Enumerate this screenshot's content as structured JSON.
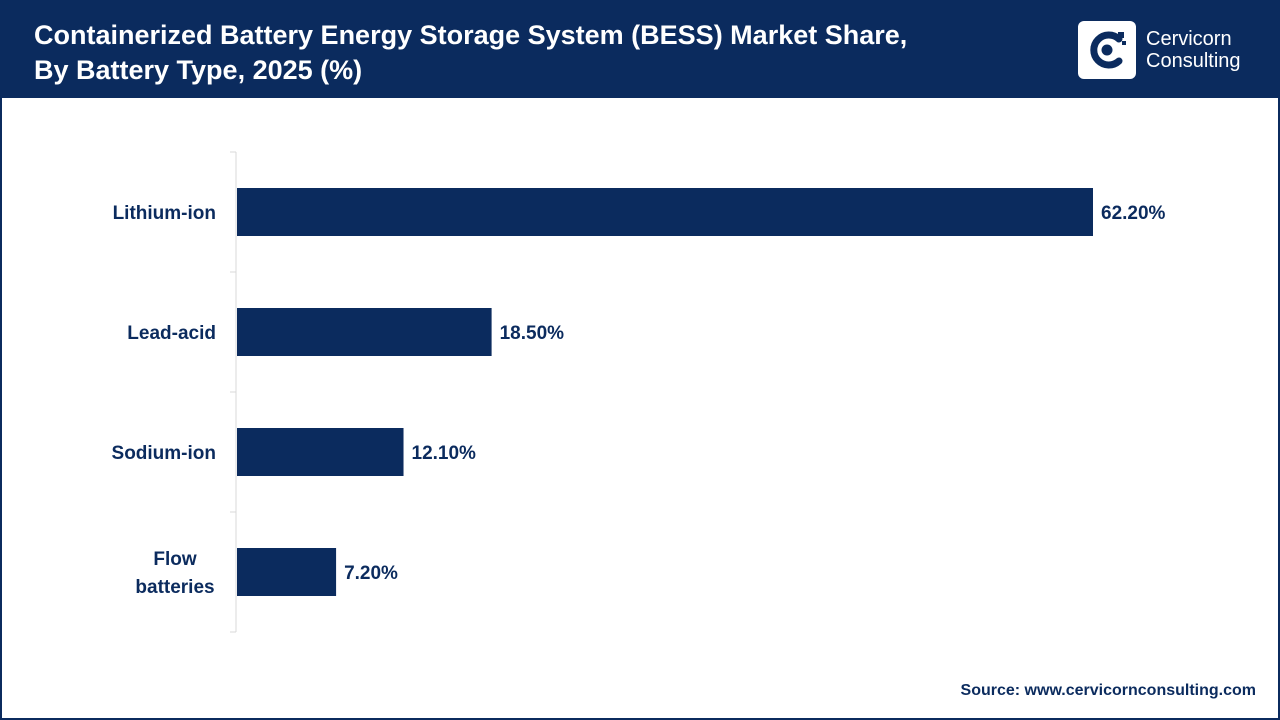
{
  "header": {
    "title_line1": "Containerized Battery Energy Storage System (BESS) Market Share,",
    "title_line2": "By Battery Type, 2025 (%)",
    "background_color": "#0b2b5e"
  },
  "logo": {
    "line1": "Cervicorn",
    "line2": "Consulting",
    "icon": "cervicorn-logo-icon"
  },
  "chart_data": {
    "type": "bar",
    "orientation": "horizontal",
    "title": "Containerized Battery Energy Storage System (BESS) Market Share, By Battery Type, 2025 (%)",
    "categories": [
      "Lithium-ion",
      "Lead-acid",
      "Sodium-ion",
      "Flow batteries"
    ],
    "category_lines": [
      [
        "Lithium-ion"
      ],
      [
        "Lead-acid"
      ],
      [
        "Sodium-ion"
      ],
      [
        "Flow",
        "batteries"
      ]
    ],
    "values": [
      62.2,
      18.5,
      12.1,
      7.2
    ],
    "value_labels": [
      "62.20%",
      "18.50%",
      "12.10%",
      "7.20%"
    ],
    "xlim": [
      0,
      70
    ],
    "bar_color": "#0b2b5e",
    "grid": false,
    "legend": "none"
  },
  "footer": {
    "source": "Source: www.cervicornconsulting.com"
  }
}
